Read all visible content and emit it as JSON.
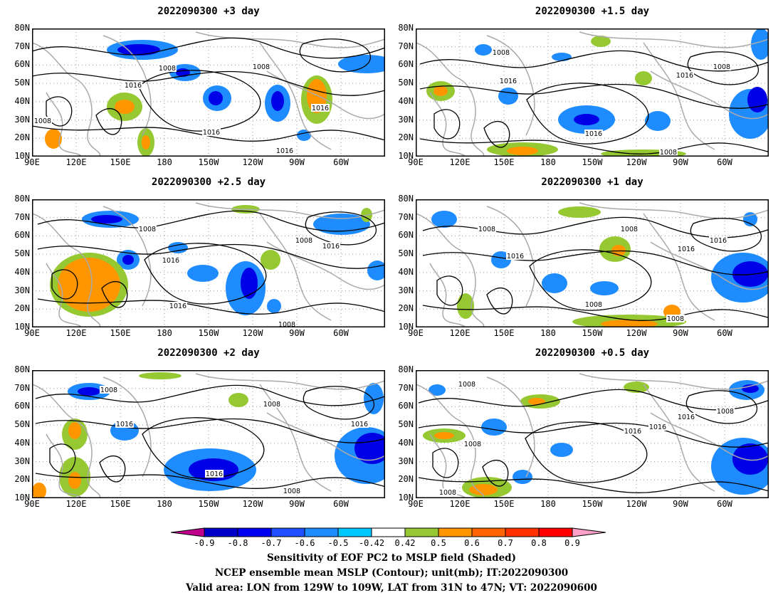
{
  "panels": [
    {
      "title": "2022090300  +3 day",
      "labels": [
        "1008",
        "1008",
        "1016",
        "1016",
        "1016",
        "1016",
        "1008"
      ]
    },
    {
      "title": "2022090300  +1.5 day",
      "labels": [
        "1008",
        "1008",
        "1016",
        "1016",
        "1016",
        "1008"
      ]
    },
    {
      "title": "2022090300  +2.5 day",
      "labels": [
        "1008",
        "1008",
        "1016",
        "1016",
        "1016",
        "1008"
      ]
    },
    {
      "title": "2022090300  +1 day",
      "labels": [
        "1008",
        "1008",
        "1016",
        "1016",
        "1016",
        "1008",
        "1008"
      ]
    },
    {
      "title": "2022090300  +2 day",
      "labels": [
        "1008",
        "1008",
        "1016",
        "1016",
        "1016",
        "1008"
      ]
    },
    {
      "title": "2022090300  +0.5 day",
      "labels": [
        "1008",
        "1008",
        "1016",
        "1016",
        "1016",
        "1008",
        "1008"
      ]
    }
  ],
  "lat_ticks": [
    "80N",
    "70N",
    "60N",
    "50N",
    "40N",
    "30N",
    "20N",
    "10N"
  ],
  "lon_ticks": [
    "90E",
    "120E",
    "150E",
    "180",
    "150W",
    "120W",
    "90W",
    "60W"
  ],
  "colorbar": {
    "labels": [
      "-0.9",
      "-0.8",
      "-0.7",
      "-0.6",
      "-0.5",
      "-0.42",
      "0.42",
      "0.5",
      "0.6",
      "0.7",
      "0.8",
      "0.9"
    ],
    "colors": [
      "#c0008c",
      "#0000c8",
      "#0000f0",
      "#1e50ff",
      "#1e8cff",
      "#00c8ff",
      "#ffffff",
      "#96c832",
      "#ff9600",
      "#ff6400",
      "#ff3200",
      "#ff0000",
      "#ffa0c8"
    ]
  },
  "colors": {
    "negative": "#1e8cff",
    "negative_dark": "#0000e6",
    "positive": "#ff9600",
    "positive_light": "#96c832",
    "coast": "#aaaaaa",
    "contour": "#000000"
  },
  "footer": {
    "line1": "Sensitivity of EOF PC2 to MSLP field (Shaded)",
    "line2": "NCEP ensemble mean MSLP (Contour); unit(mb); IT:2022090300",
    "line3": "Valid area: LON from 129W to 109W, LAT from 31N to 47N; VT: 2022090600"
  }
}
